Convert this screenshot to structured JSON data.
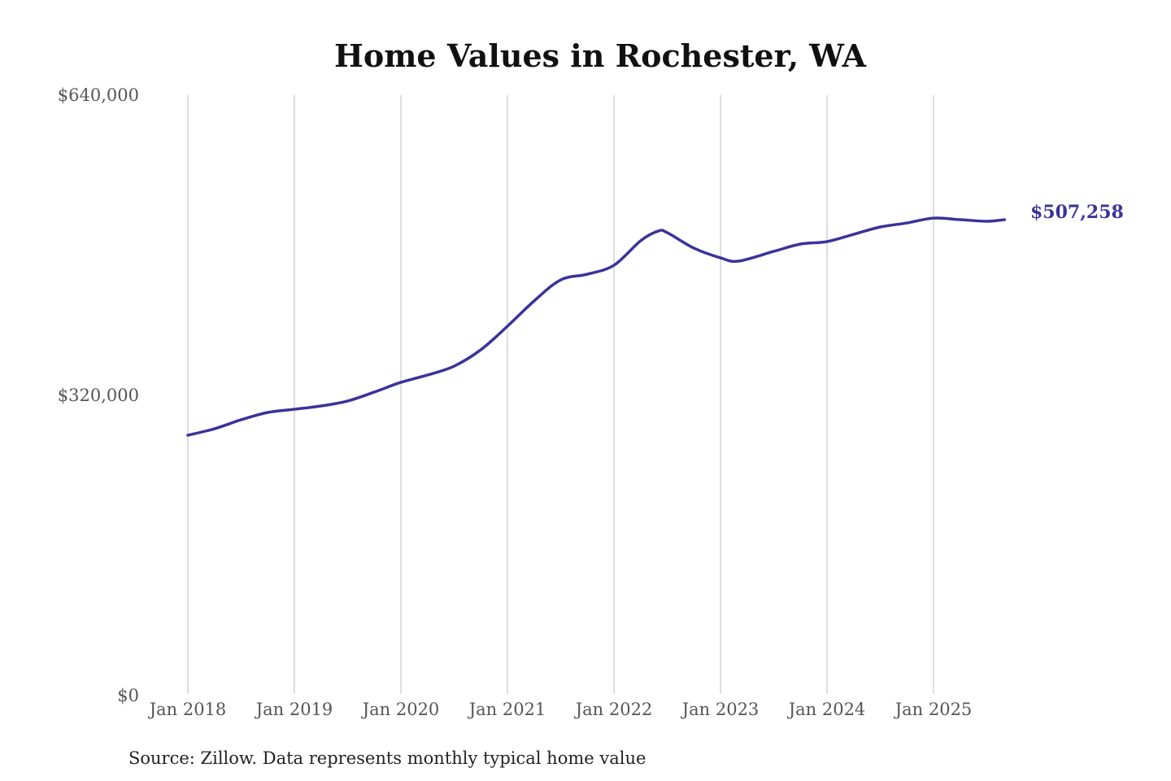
{
  "chart_data": {
    "type": "line",
    "title": "Home Values in Rochester, WA",
    "xlabel": "",
    "ylabel": "",
    "source": "Source: Zillow. Data represents monthly typical home value",
    "ylim": [
      0,
      640000
    ],
    "y_ticks": [
      0,
      320000,
      640000
    ],
    "y_tick_labels": [
      "$0",
      "$320,000",
      "$640,000"
    ],
    "x_ticks": [
      "2018-01",
      "2019-01",
      "2020-01",
      "2021-01",
      "2022-01",
      "2023-01",
      "2024-01",
      "2025-01"
    ],
    "x_tick_labels": [
      "Jan 2018",
      "Jan 2019",
      "Jan 2020",
      "Jan 2021",
      "Jan 2022",
      "Jan 2023",
      "Jan 2024",
      "Jan 2025"
    ],
    "grid": "vertical",
    "line_color": "#3a3399",
    "end_label": "$507,258",
    "x": [
      "2018-01",
      "2018-04",
      "2018-07",
      "2018-10",
      "2019-01",
      "2019-04",
      "2019-07",
      "2019-10",
      "2020-01",
      "2020-04",
      "2020-07",
      "2020-10",
      "2021-01",
      "2021-04",
      "2021-07",
      "2021-10",
      "2022-01",
      "2022-04",
      "2022-06",
      "2022-07",
      "2022-10",
      "2023-01",
      "2023-03",
      "2023-07",
      "2023-10",
      "2024-01",
      "2024-04",
      "2024-07",
      "2024-10",
      "2025-01",
      "2025-04",
      "2025-07",
      "2025-09"
    ],
    "values": [
      277500,
      284400,
      294000,
      301800,
      305200,
      308700,
      314000,
      323500,
      333900,
      341700,
      351200,
      368600,
      393700,
      420600,
      443100,
      449200,
      458700,
      484800,
      495200,
      493500,
      477000,
      466600,
      463100,
      473500,
      481300,
      483900,
      491700,
      499500,
      503800,
      509000,
      507300,
      505600,
      507258
    ]
  }
}
